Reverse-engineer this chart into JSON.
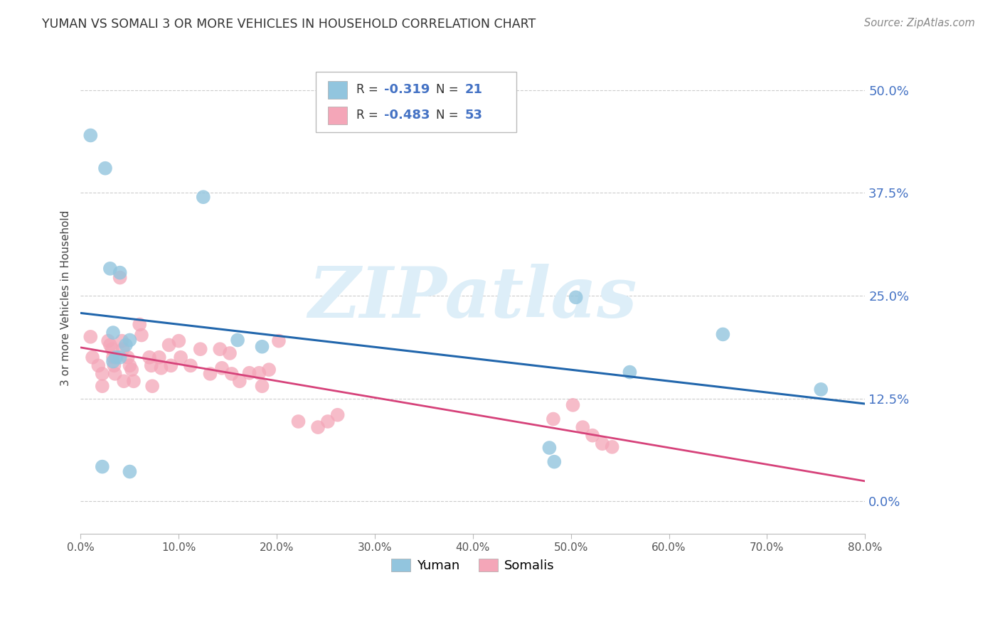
{
  "title": "YUMAN VS SOMALI 3 OR MORE VEHICLES IN HOUSEHOLD CORRELATION CHART",
  "source": "Source: ZipAtlas.com",
  "ylabel": "3 or more Vehicles in Household",
  "xmin": 0.0,
  "xmax": 0.8,
  "ymin": -0.04,
  "ymax": 0.535,
  "ytick_vals": [
    0.0,
    0.125,
    0.25,
    0.375,
    0.5
  ],
  "ytick_labels": [
    "0.0%",
    "12.5%",
    "25.0%",
    "37.5%",
    "50.0%"
  ],
  "xtick_vals": [
    0.0,
    0.1,
    0.2,
    0.3,
    0.4,
    0.5,
    0.6,
    0.7,
    0.8
  ],
  "xtick_labels": [
    "0.0%",
    "10.0%",
    "20.0%",
    "30.0%",
    "40.0%",
    "50.0%",
    "60.0%",
    "70.0%",
    "80.0%"
  ],
  "yuman_color": "#92c5de",
  "somali_color": "#f4a6b8",
  "yuman_line_color": "#2166ac",
  "somali_line_color": "#d6427a",
  "legend_R_yuman": "-0.319",
  "legend_N_yuman": "21",
  "legend_R_somali": "-0.483",
  "legend_N_somali": "53",
  "legend_num_color": "#4472c4",
  "right_axis_color": "#4472c4",
  "yuman_x": [
    0.01,
    0.025,
    0.125,
    0.03,
    0.04,
    0.033,
    0.046,
    0.05,
    0.033,
    0.036,
    0.16,
    0.185,
    0.04,
    0.505,
    0.56,
    0.655,
    0.755,
    0.05,
    0.022,
    0.483,
    0.478
  ],
  "yuman_y": [
    0.445,
    0.405,
    0.37,
    0.283,
    0.278,
    0.205,
    0.19,
    0.196,
    0.17,
    0.175,
    0.196,
    0.188,
    0.175,
    0.248,
    0.157,
    0.203,
    0.136,
    0.036,
    0.042,
    0.048,
    0.065
  ],
  "somali_x": [
    0.01,
    0.012,
    0.018,
    0.022,
    0.022,
    0.028,
    0.03,
    0.032,
    0.033,
    0.034,
    0.035,
    0.04,
    0.042,
    0.043,
    0.044,
    0.048,
    0.05,
    0.052,
    0.054,
    0.06,
    0.062,
    0.07,
    0.072,
    0.073,
    0.08,
    0.082,
    0.09,
    0.092,
    0.1,
    0.102,
    0.112,
    0.122,
    0.132,
    0.142,
    0.144,
    0.152,
    0.154,
    0.162,
    0.172,
    0.182,
    0.185,
    0.192,
    0.202,
    0.222,
    0.242,
    0.252,
    0.262,
    0.482,
    0.502,
    0.512,
    0.522,
    0.532,
    0.542
  ],
  "somali_y": [
    0.2,
    0.175,
    0.165,
    0.155,
    0.14,
    0.195,
    0.19,
    0.185,
    0.175,
    0.165,
    0.155,
    0.272,
    0.195,
    0.185,
    0.146,
    0.175,
    0.165,
    0.16,
    0.146,
    0.215,
    0.202,
    0.175,
    0.165,
    0.14,
    0.175,
    0.162,
    0.19,
    0.165,
    0.195,
    0.175,
    0.165,
    0.185,
    0.155,
    0.185,
    0.162,
    0.18,
    0.155,
    0.146,
    0.156,
    0.156,
    0.14,
    0.16,
    0.195,
    0.097,
    0.09,
    0.097,
    0.105,
    0.1,
    0.117,
    0.09,
    0.08,
    0.07,
    0.066
  ],
  "bg_color": "#ffffff",
  "grid_color": "#cccccc",
  "watermark": "ZIPatlas",
  "watermark_color": "#ddeef8"
}
